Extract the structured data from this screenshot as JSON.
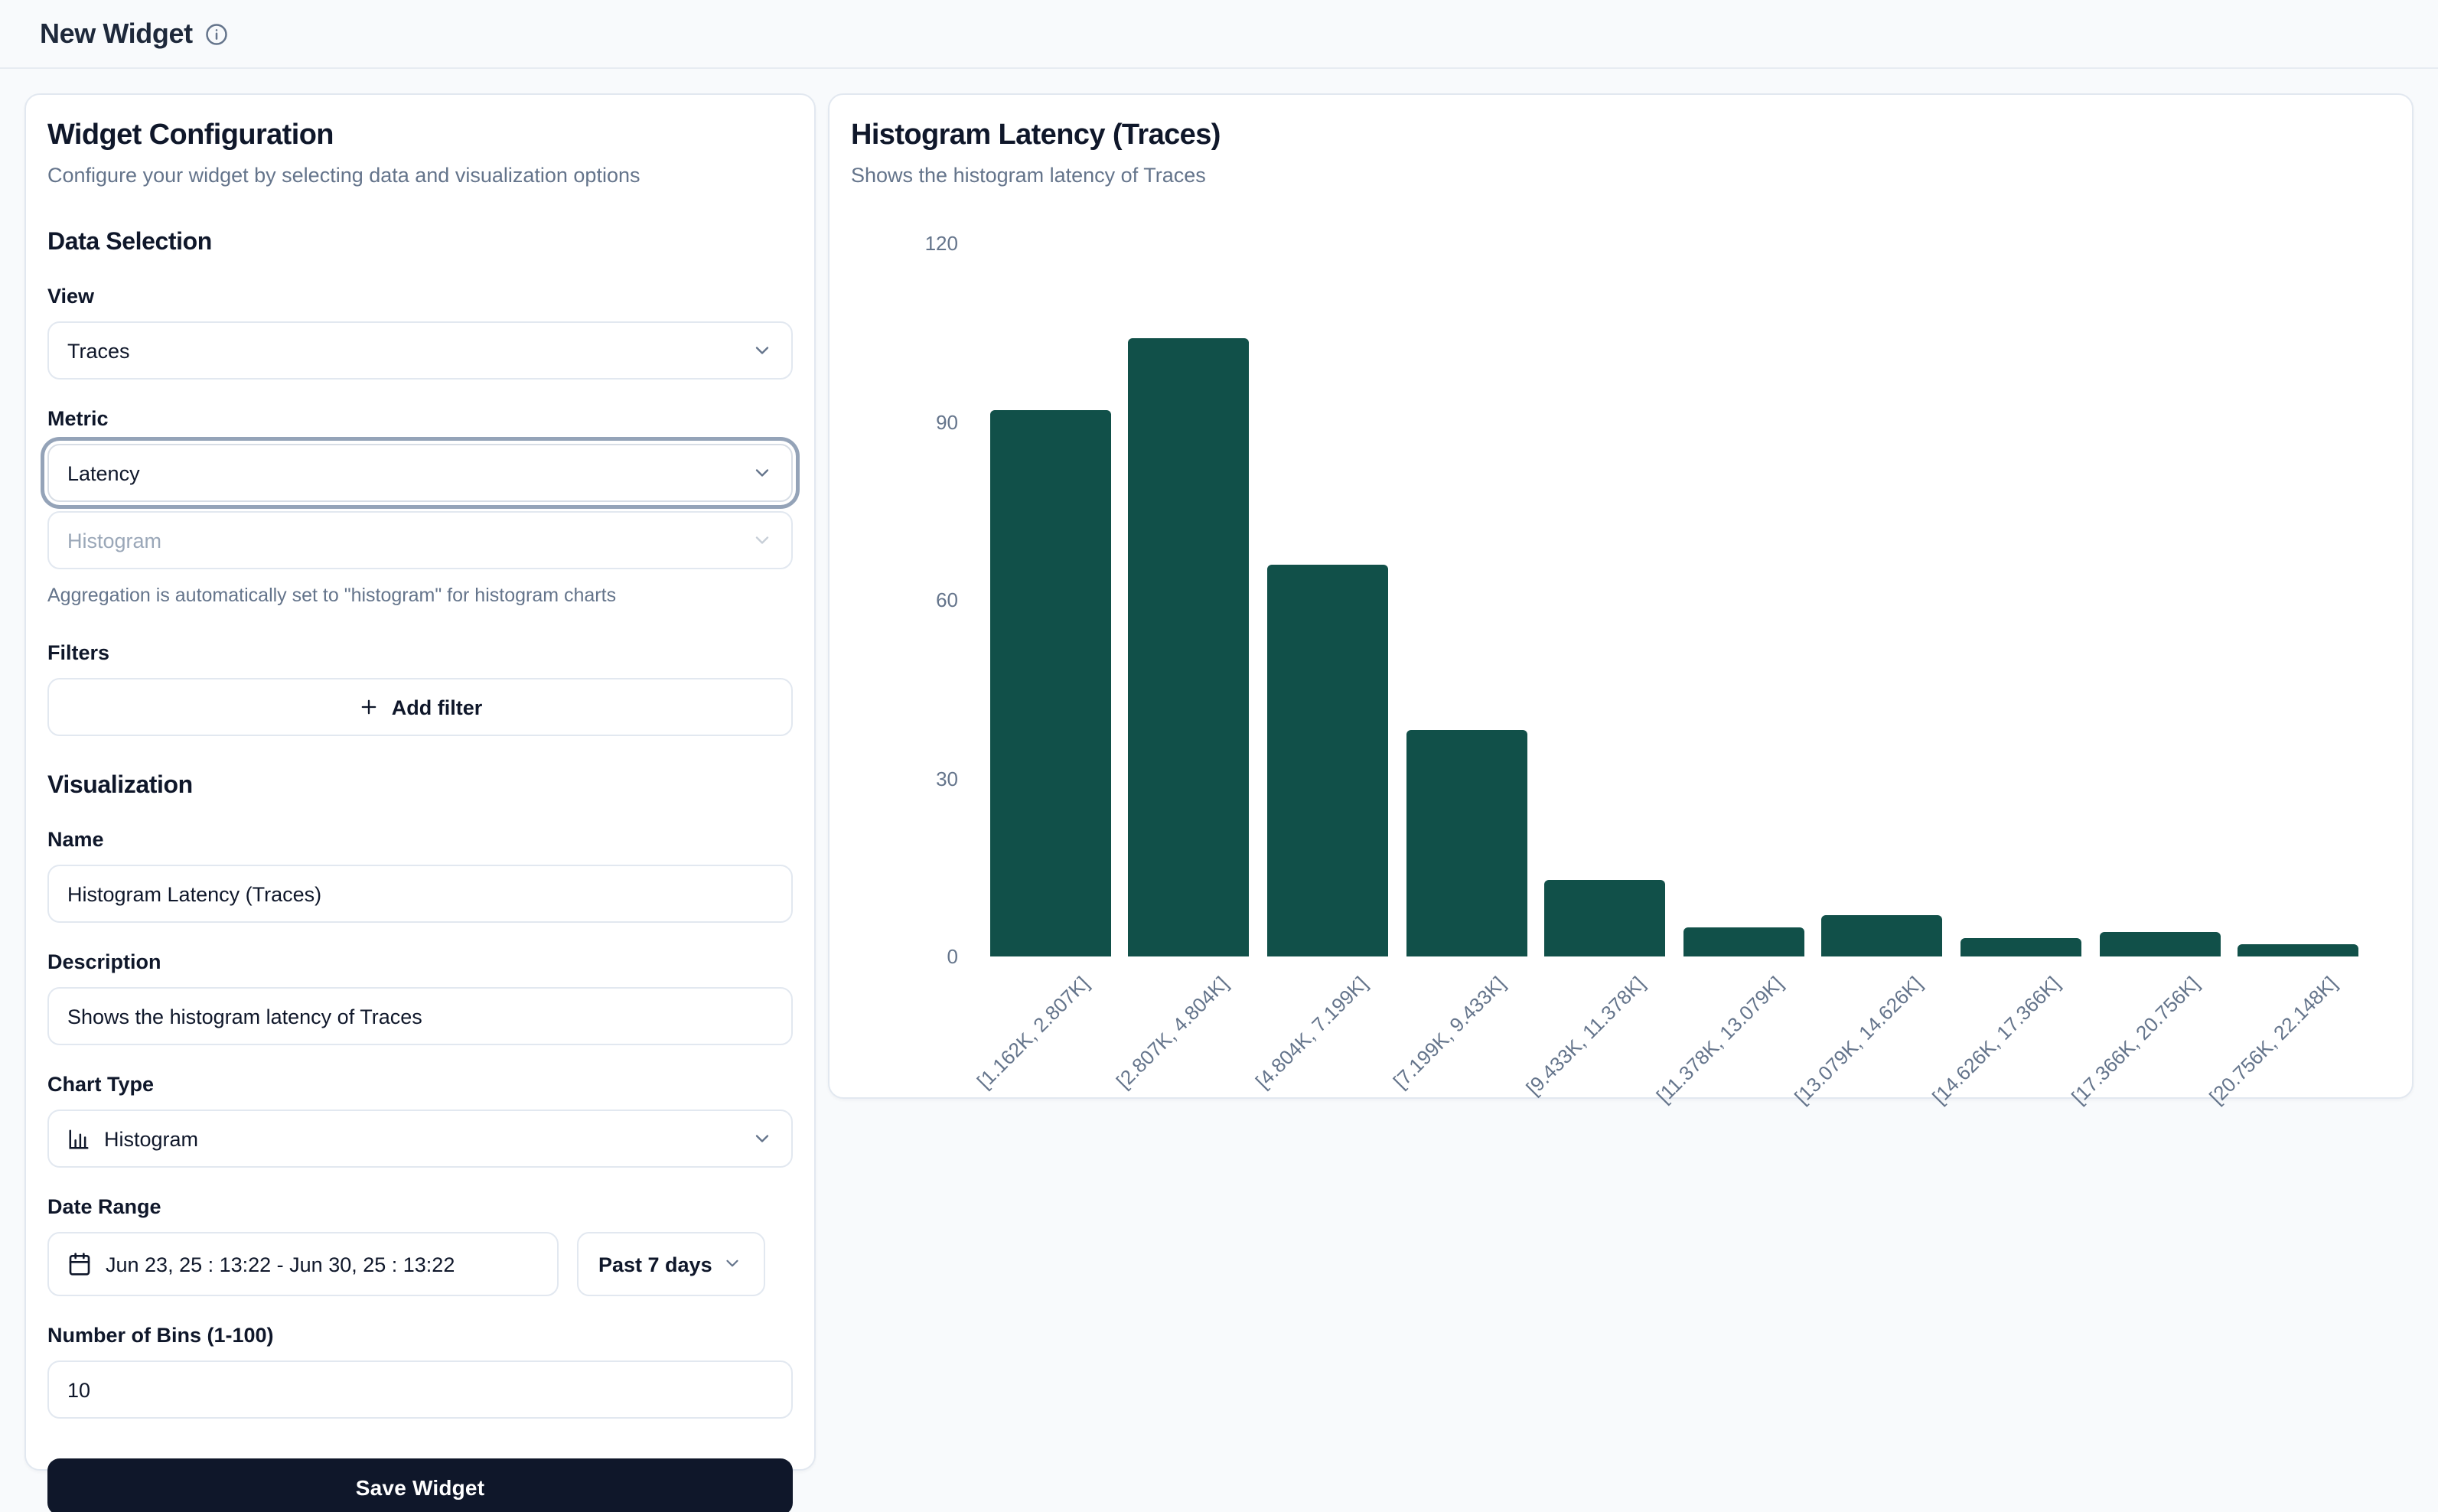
{
  "header": {
    "title": "New Widget"
  },
  "config_panel": {
    "title": "Widget Configuration",
    "subtitle": "Configure your widget by selecting data and visualization options",
    "data_selection": {
      "heading": "Data Selection",
      "view_label": "View",
      "view_value": "Traces",
      "metric_label": "Metric",
      "metric_value": "Latency",
      "aggregation_value": "Histogram",
      "aggregation_hint": "Aggregation is automatically set to \"histogram\" for histogram charts",
      "filters_label": "Filters",
      "add_filter_label": "Add filter"
    },
    "visualization": {
      "heading": "Visualization",
      "name_label": "Name",
      "name_value": "Histogram Latency (Traces)",
      "description_label": "Description",
      "description_value": "Shows the histogram latency of Traces",
      "chart_type_label": "Chart Type",
      "chart_type_value": "Histogram",
      "date_range_label": "Date Range",
      "date_range_value": "Jun 23, 25 : 13:22 - Jun 30, 25 : 13:22",
      "date_preset_value": "Past 7 days",
      "bins_label": "Number of Bins (1-100)",
      "bins_value": "10",
      "save_button_label": "Save Widget"
    }
  },
  "preview_panel": {
    "title": "Histogram Latency (Traces)",
    "subtitle": "Shows the histogram latency of Traces"
  },
  "chart_data": {
    "type": "bar",
    "title": "Histogram Latency (Traces)",
    "categories": [
      "[1.162K, 2.807K]",
      "[2.807K, 4.804K]",
      "[4.804K, 7.199K]",
      "[7.199K, 9.433K]",
      "[9.433K, 11.378K]",
      "[11.378K, 13.079K]",
      "[13.079K, 14.626K]",
      "[14.626K, 17.366K]",
      "[17.366K, 20.756K]",
      "[20.756K, 22.148K]"
    ],
    "values": [
      92,
      104,
      66,
      38,
      13,
      5,
      7,
      3,
      4,
      2
    ],
    "xlabel": "",
    "ylabel": "",
    "ylim": [
      0,
      120
    ],
    "yticks": [
      0,
      30,
      60,
      90,
      120
    ],
    "grid": false,
    "legend": "none",
    "bar_color": "#115049",
    "tick_label_color": "#64748b"
  },
  "colors": {
    "accent_bar": "#115049",
    "primary_button": "#0f172a",
    "border": "#e2e8f0",
    "muted_text": "#64748b",
    "page_bg": "#f8fafc"
  }
}
